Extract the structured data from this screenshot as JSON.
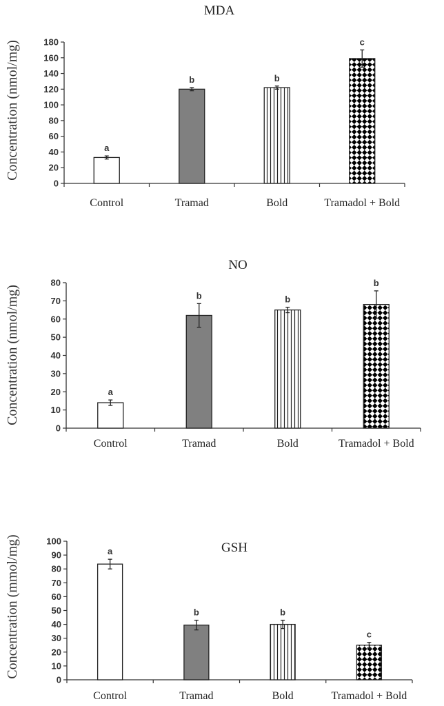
{
  "chart_data": [
    {
      "type": "bar",
      "title": "MDA",
      "ylabel": "Concentration (nmol/mg)",
      "xlabel": "",
      "categories": [
        "Control",
        "Tramad",
        "Bold",
        "Tramadol + Bold"
      ],
      "values": [
        33,
        120,
        122,
        159
      ],
      "errors": [
        2,
        2,
        2,
        11
      ],
      "significance": [
        "a",
        "b",
        "b",
        "c"
      ],
      "ylim": [
        0,
        180
      ],
      "yticks": [
        0,
        20,
        40,
        60,
        80,
        100,
        120,
        140,
        160,
        180
      ],
      "grid": false
    },
    {
      "type": "bar",
      "title": "NO",
      "ylabel": "Concentration (nmol/mg)",
      "xlabel": "",
      "categories": [
        "Control",
        "Tramad",
        "Bold",
        "Tramadol + Bold"
      ],
      "values": [
        14,
        62,
        65,
        68
      ],
      "errors": [
        1.5,
        6.5,
        1.5,
        7.5
      ],
      "significance": [
        "a",
        "b",
        "b",
        "b"
      ],
      "ylim": [
        0,
        80
      ],
      "yticks": [
        0,
        10,
        20,
        30,
        40,
        50,
        60,
        70,
        80
      ],
      "grid": false
    },
    {
      "type": "bar",
      "title": "GSH",
      "ylabel": "Concentration (mmol/mg)",
      "xlabel": "",
      "categories": [
        "Control",
        "Tramad",
        "Bold",
        "Tramadol + Bold"
      ],
      "values": [
        83.5,
        39.5,
        40,
        25
      ],
      "errors": [
        3.5,
        3.5,
        3,
        2
      ],
      "significance": [
        "a",
        "b",
        "b",
        "c"
      ],
      "ylim": [
        0,
        100
      ],
      "yticks": [
        0,
        10,
        20,
        30,
        40,
        50,
        60,
        70,
        80,
        90,
        100
      ],
      "grid": false
    }
  ],
  "colors": {
    "axis": "#333333",
    "tramad_fill": "#808080",
    "pattern": "#000000"
  }
}
